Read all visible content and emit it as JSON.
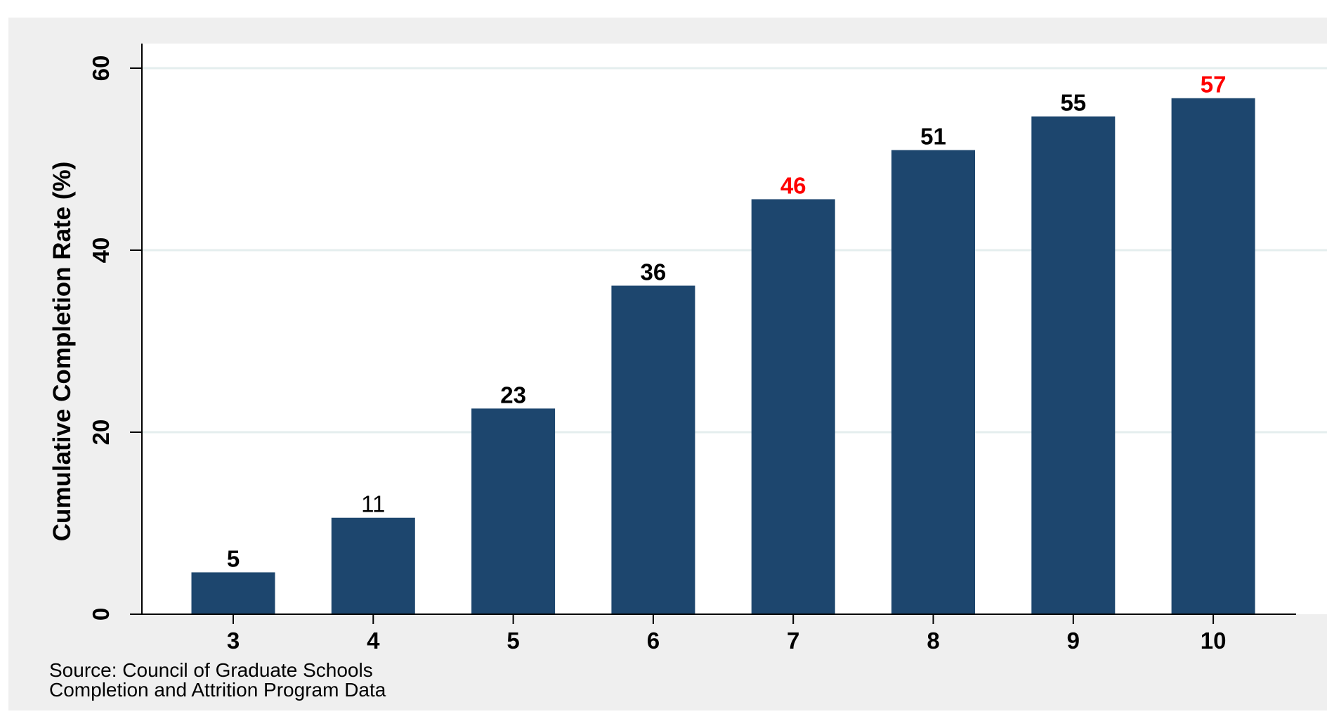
{
  "chart_data": {
    "type": "bar",
    "ylabel": "Cumulative Completion Rate (%)",
    "xlabel": "",
    "categories": [
      "3",
      "4",
      "5",
      "6",
      "7",
      "8",
      "9",
      "10"
    ],
    "values": [
      4.6,
      10.6,
      22.6,
      36.1,
      45.6,
      51.0,
      54.7,
      56.7
    ],
    "data_labels": [
      "5",
      "11",
      "23",
      "36",
      "46",
      "51",
      "55",
      "57"
    ],
    "highlighted_labels": [
      "7",
      "10"
    ],
    "ylim": [
      0,
      60
    ],
    "yticks": [
      0,
      20,
      40,
      60
    ],
    "ytick_labels": [
      "0",
      "20",
      "40",
      "60"
    ],
    "grid": true,
    "colors": {
      "outer_background": "#efefef",
      "plot_background": "#ffffff",
      "bar": "#1d466e",
      "gridline": "#e4eeee",
      "axis": "#000000",
      "label_default": "#000000",
      "label_highlight": "#ff0000"
    }
  },
  "source": {
    "line1": "Source: Council of Graduate Schools",
    "line2": "Completion and Attrition Program Data"
  }
}
